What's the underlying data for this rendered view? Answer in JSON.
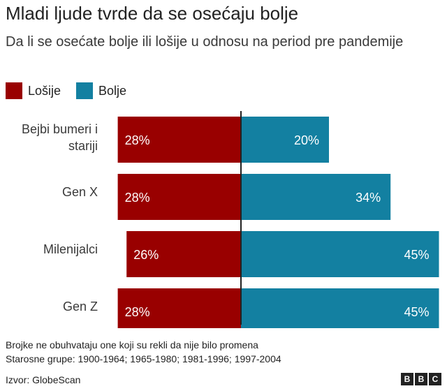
{
  "title": "Mladi ljude tvrde da se osećaju bolje",
  "subtitle": "Da li se osećate bolje ili lošije u odnosu na period pre pandemije",
  "colors": {
    "worse": "#990000",
    "better": "#1380A1"
  },
  "chart_data": {
    "type": "bar",
    "orientation": "horizontal-diverging",
    "categories": [
      "Bejbi bumeri i stariji",
      "Gen X",
      "Milenijalci",
      "Gen Z"
    ],
    "category_lines": [
      [
        "Bejbi bumeri i",
        "stariji"
      ],
      [
        "Gen X"
      ],
      [
        "Milenijalci"
      ],
      [
        "Gen Z"
      ]
    ],
    "series": [
      {
        "name": "Lošije",
        "values": [
          28,
          28,
          26,
          28
        ],
        "labels": [
          "28%",
          "28%",
          "26%",
          "28%"
        ],
        "color": "#990000",
        "direction": "left"
      },
      {
        "name": "Bolje",
        "values": [
          20,
          34,
          45,
          45
        ],
        "labels": [
          "20%",
          "34%",
          "45%",
          "45%"
        ],
        "color": "#1380A1",
        "direction": "right"
      }
    ],
    "legend_position": "top-left",
    "grid": false
  },
  "notes": [
    "Brojke ne obuhvataju one koji su rekli da nije bilo promena",
    "Starosne grupe: 1900-1964; 1965-1980; 1981-1996; 1997-2004"
  ],
  "source": "Izvor: GlobeScan",
  "logo_letters": [
    "B",
    "B",
    "C"
  ]
}
